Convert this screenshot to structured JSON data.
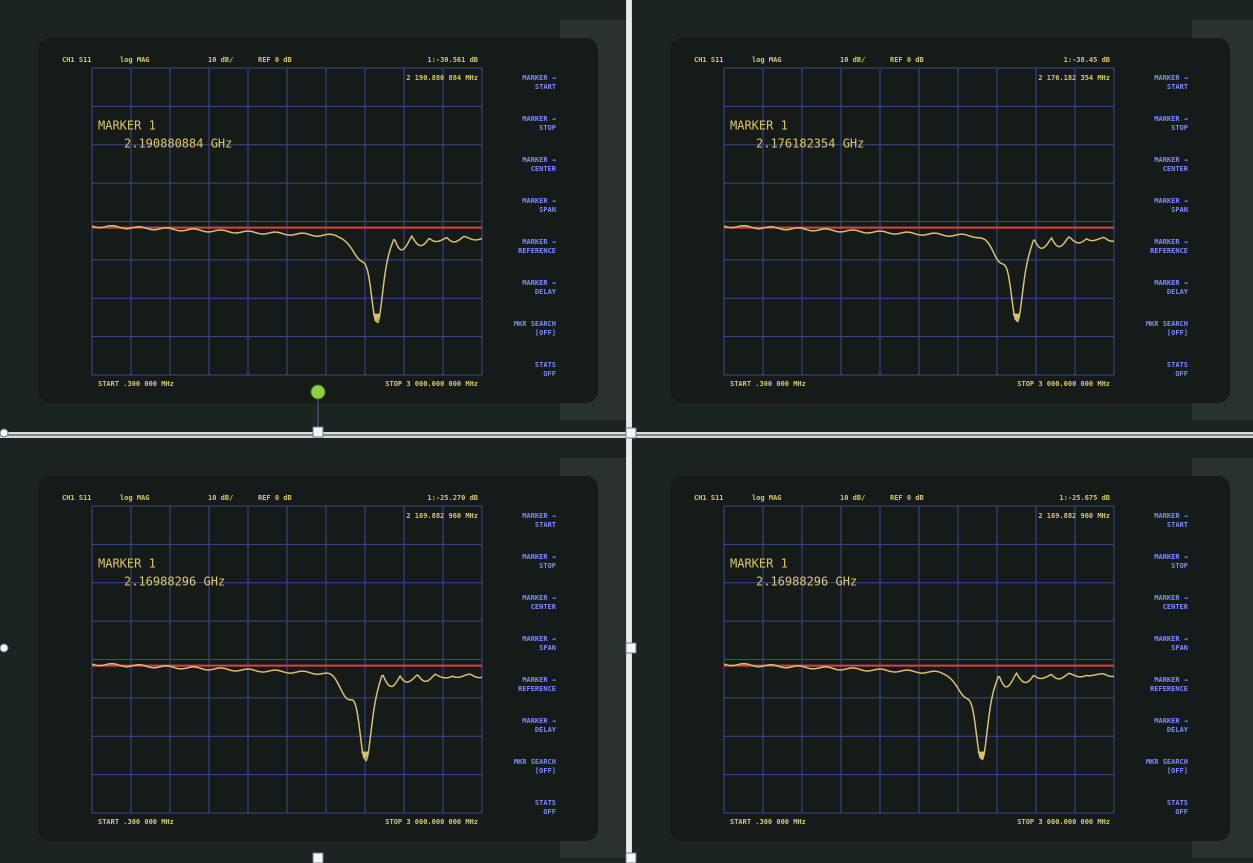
{
  "panels": [
    {
      "channel": "CH1 S11",
      "format": "log MAG",
      "scale": "10 dB/",
      "ref": "REF 0 dB",
      "marker_value": "1:-30.561 dB",
      "marker_readout": "2 190.880 884 MHz",
      "marker_title": "MARKER 1",
      "marker_freq": "2.190880884 GHz",
      "start": "START .300 000 MHz",
      "stop": "STOP 3 000.000 000 MHz",
      "softkeys": [
        [
          "MARKER →",
          "START"
        ],
        [
          "MARKER →",
          "STOP"
        ],
        [
          "MARKER →",
          "CENTER"
        ],
        [
          "MARKER →",
          "SPAN"
        ],
        [
          "MARKER →",
          "REFERENCE"
        ],
        [
          "MARKER →",
          "DELAY"
        ],
        [
          "MKR SEARCH",
          "[OFF]"
        ],
        [
          "STATS",
          "OFF"
        ]
      ]
    },
    {
      "channel": "CH1 S11",
      "format": "log MAG",
      "scale": "10 dB/",
      "ref": "REF 0 dB",
      "marker_value": "1:-38.45 dB",
      "marker_readout": "2 176.182 354 MHz",
      "marker_title": "MARKER 1",
      "marker_freq": "2.176182354 GHz",
      "start": "START .300 000 MHz",
      "stop": "STOP 3 000.000 000 MHz",
      "softkeys": [
        [
          "MARKER →",
          "START"
        ],
        [
          "MARKER →",
          "STOP"
        ],
        [
          "MARKER →",
          "CENTER"
        ],
        [
          "MARKER →",
          "SPAN"
        ],
        [
          "MARKER →",
          "REFERENCE"
        ],
        [
          "MARKER →",
          "DELAY"
        ],
        [
          "MKR SEARCH",
          "[OFF]"
        ],
        [
          "STATS",
          "OFF"
        ]
      ]
    },
    {
      "channel": "CH1 S11",
      "format": "log MAG",
      "scale": "10 dB/",
      "ref": "REF 0 dB",
      "marker_value": "1:-25.270 dB",
      "marker_readout": "2 169.882 960 MHz",
      "marker_title": "MARKER 1",
      "marker_freq": "2.16988296 GHz",
      "start": "START .300 000 MHz",
      "stop": "STOP 3 000.000 000 MHz",
      "softkeys": [
        [
          "MARKER →",
          "START"
        ],
        [
          "MARKER →",
          "STOP"
        ],
        [
          "MARKER →",
          "CENTER"
        ],
        [
          "MARKER →",
          "SPAN"
        ],
        [
          "MARKER →",
          "REFERENCE"
        ],
        [
          "MARKER →",
          "DELAY"
        ],
        [
          "MKR SEARCH",
          "[OFF]"
        ],
        [
          "STATS",
          "OFF"
        ]
      ]
    },
    {
      "channel": "CH1 S11",
      "format": "log MAG",
      "scale": "10 dB/",
      "ref": "REF 0 dB",
      "marker_value": "1:-25.675 dB",
      "marker_readout": "2 169.882 960 MHz",
      "marker_title": "MARKER 1",
      "marker_freq": "2.16988296 GHz",
      "start": "START .300 000 MHz",
      "stop": "STOP 3 000.000 000 MHz",
      "softkeys": [
        [
          "MARKER →",
          "START"
        ],
        [
          "MARKER →",
          "STOP"
        ],
        [
          "MARKER →",
          "CENTER"
        ],
        [
          "MARKER →",
          "SPAN"
        ],
        [
          "MARKER →",
          "REFERENCE"
        ],
        [
          "MARKER →",
          "DELAY"
        ],
        [
          "MKR SEARCH",
          "[OFF]"
        ],
        [
          "STATS",
          "OFF"
        ]
      ]
    }
  ]
}
